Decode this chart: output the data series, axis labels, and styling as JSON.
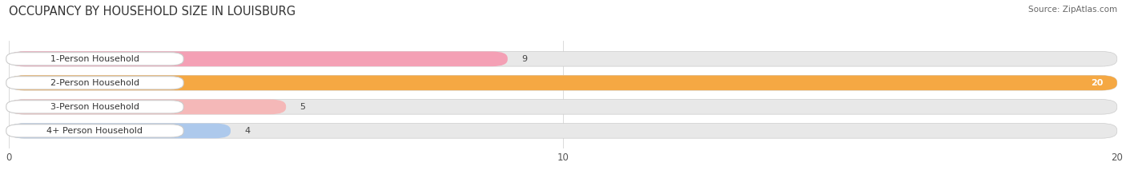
{
  "title": "OCCUPANCY BY HOUSEHOLD SIZE IN LOUISBURG",
  "source": "Source: ZipAtlas.com",
  "categories": [
    "1-Person Household",
    "2-Person Household",
    "3-Person Household",
    "4+ Person Household"
  ],
  "values": [
    9,
    20,
    5,
    4
  ],
  "bar_colors": [
    "#f4a0b5",
    "#f5a843",
    "#f5b8b8",
    "#adc9ec"
  ],
  "bar_bg_color": "#e8e8e8",
  "xlim": [
    0,
    20
  ],
  "xticks": [
    0,
    10,
    20
  ],
  "figsize": [
    14.06,
    2.33
  ],
  "dpi": 100,
  "title_fontsize": 10.5,
  "label_fontsize": 8,
  "value_fontsize": 8,
  "source_fontsize": 7.5,
  "bar_height": 0.62,
  "bar_gap": 0.18
}
